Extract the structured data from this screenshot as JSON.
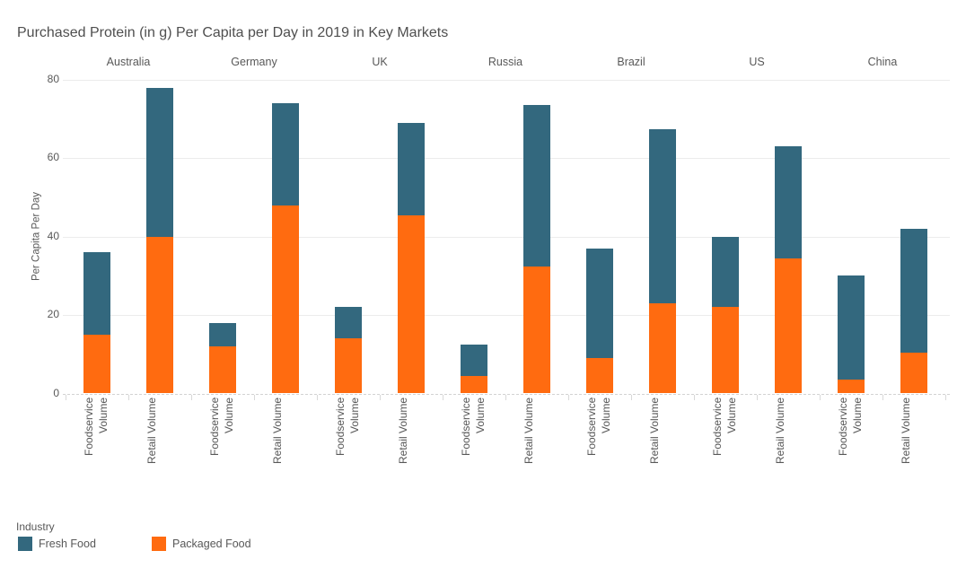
{
  "chart_data": {
    "type": "bar",
    "stacked": true,
    "title": "Purchased Protein (in g) Per Capita per Day in 2019 in Key Markets",
    "ylabel": "Per Capita Per Day",
    "xlabel": "",
    "ylim": [
      0,
      80
    ],
    "yticks": [
      0,
      20,
      40,
      60,
      80
    ],
    "grid": "horizontal",
    "groups": [
      "Australia",
      "Germany",
      "UK",
      "Russia",
      "Brazil",
      "US",
      "China"
    ],
    "categories": [
      "Foodservice Volume",
      "Retail Volume",
      "Foodservice Volume",
      "Retail Volume",
      "Foodservice Volume",
      "Retail Volume",
      "Foodservice Volume",
      "Retail Volume",
      "Foodservice Volume",
      "Retail Volume",
      "Foodservice Volume",
      "Retail Volume",
      "Foodservice Volume",
      "Retail Volume"
    ],
    "series": [
      {
        "name": "Packaged Food",
        "color": "#FF6B10",
        "values": [
          15,
          40,
          12,
          48,
          14,
          45.5,
          4.5,
          32.5,
          9,
          23,
          22,
          34.5,
          3.5,
          10.5
        ]
      },
      {
        "name": "Fresh Food",
        "color": "#33687E",
        "values": [
          21,
          38,
          6,
          26,
          8,
          23.5,
          8,
          41,
          28,
          44.5,
          18,
          28.5,
          26.5,
          31.5
        ]
      }
    ],
    "legend": {
      "title": "Industry",
      "position": "bottom-left",
      "entries": [
        {
          "label": "Fresh Food",
          "color": "#33687E"
        },
        {
          "label": "Packaged Food",
          "color": "#FF6B10"
        }
      ]
    }
  }
}
